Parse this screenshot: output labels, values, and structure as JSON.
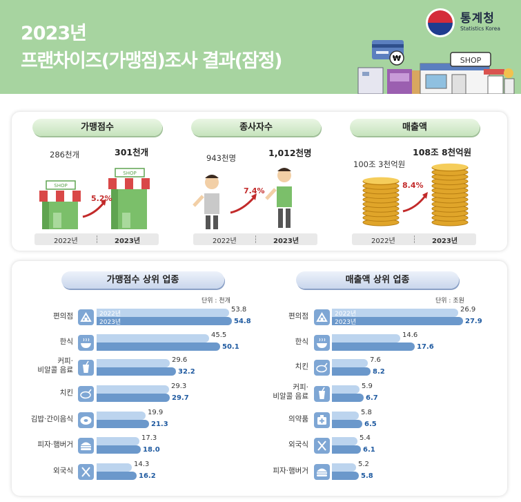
{
  "header": {
    "title_line1": "2023년",
    "title_line2": "프랜차이즈(가맹점)조사 결과(잠정)",
    "logo_name": "통계청",
    "logo_sub": "Statistics Korea",
    "shop_sign": "SHOP"
  },
  "colors": {
    "header_bg": "#a7d4a0",
    "bar_2022": "#bcd4ee",
    "bar_2023": "#6b98cb",
    "icon_box": "#7ea6d4",
    "increase": "#c22a2a"
  },
  "summary": {
    "shop_sign": "SHOP",
    "year_old": "2022년",
    "year_new": "2023년",
    "metrics": [
      {
        "title": "가맹점수",
        "old": "286천개",
        "new": "301천개",
        "change": "5.2%",
        "icon": "store-icon"
      },
      {
        "title": "종사자수",
        "old": "943천명",
        "new": "1,012천명",
        "change": "7.4%",
        "icon": "worker-icon"
      },
      {
        "title": "매출액",
        "old": "100조 3천억원",
        "new": "108조 8천억원",
        "change": "8.4%",
        "icon": "coin-stack-icon"
      }
    ]
  },
  "chart_data": [
    {
      "type": "bar",
      "orientation": "horizontal",
      "title": "가맹점수 상위 업종",
      "unit": "단위 : 천개",
      "legend": [
        "2022년",
        "2023년"
      ],
      "categories": [
        "편의점",
        "한식",
        "커피·\n비알콜 음료",
        "치킨",
        "김밥·간이음식",
        "피자·햄버거",
        "외국식"
      ],
      "icons": [
        "convenience-store-icon",
        "bowl-icon",
        "cup-icon",
        "chicken-icon",
        "gimbap-icon",
        "burger-icon",
        "fork-knife-icon"
      ],
      "series": [
        {
          "name": "2022년",
          "values": [
            53.8,
            45.5,
            29.6,
            29.3,
            19.9,
            17.3,
            14.3
          ]
        },
        {
          "name": "2023년",
          "values": [
            54.8,
            50.1,
            32.2,
            29.7,
            21.3,
            18.0,
            16.2
          ]
        }
      ],
      "xlim": [
        0,
        56
      ]
    },
    {
      "type": "bar",
      "orientation": "horizontal",
      "title": "매출액 상위 업종",
      "unit": "단위 : 조원",
      "legend": [
        "2022년",
        "2023년"
      ],
      "categories": [
        "편의점",
        "한식",
        "치킨",
        "커피·\n비알콜 음료",
        "의약품",
        "외국식",
        "피자·햄버거"
      ],
      "icons": [
        "convenience-store-icon",
        "bowl-icon",
        "chicken-icon",
        "cup-icon",
        "medicine-icon",
        "fork-knife-icon",
        "burger-icon"
      ],
      "series": [
        {
          "name": "2022년",
          "values": [
            26.9,
            14.6,
            7.6,
            5.9,
            5.8,
            5.4,
            5.2
          ]
        },
        {
          "name": "2023년",
          "values": [
            27.9,
            17.6,
            8.2,
            6.7,
            6.5,
            6.1,
            5.8
          ]
        }
      ],
      "xlim": [
        0,
        28.5
      ]
    }
  ]
}
